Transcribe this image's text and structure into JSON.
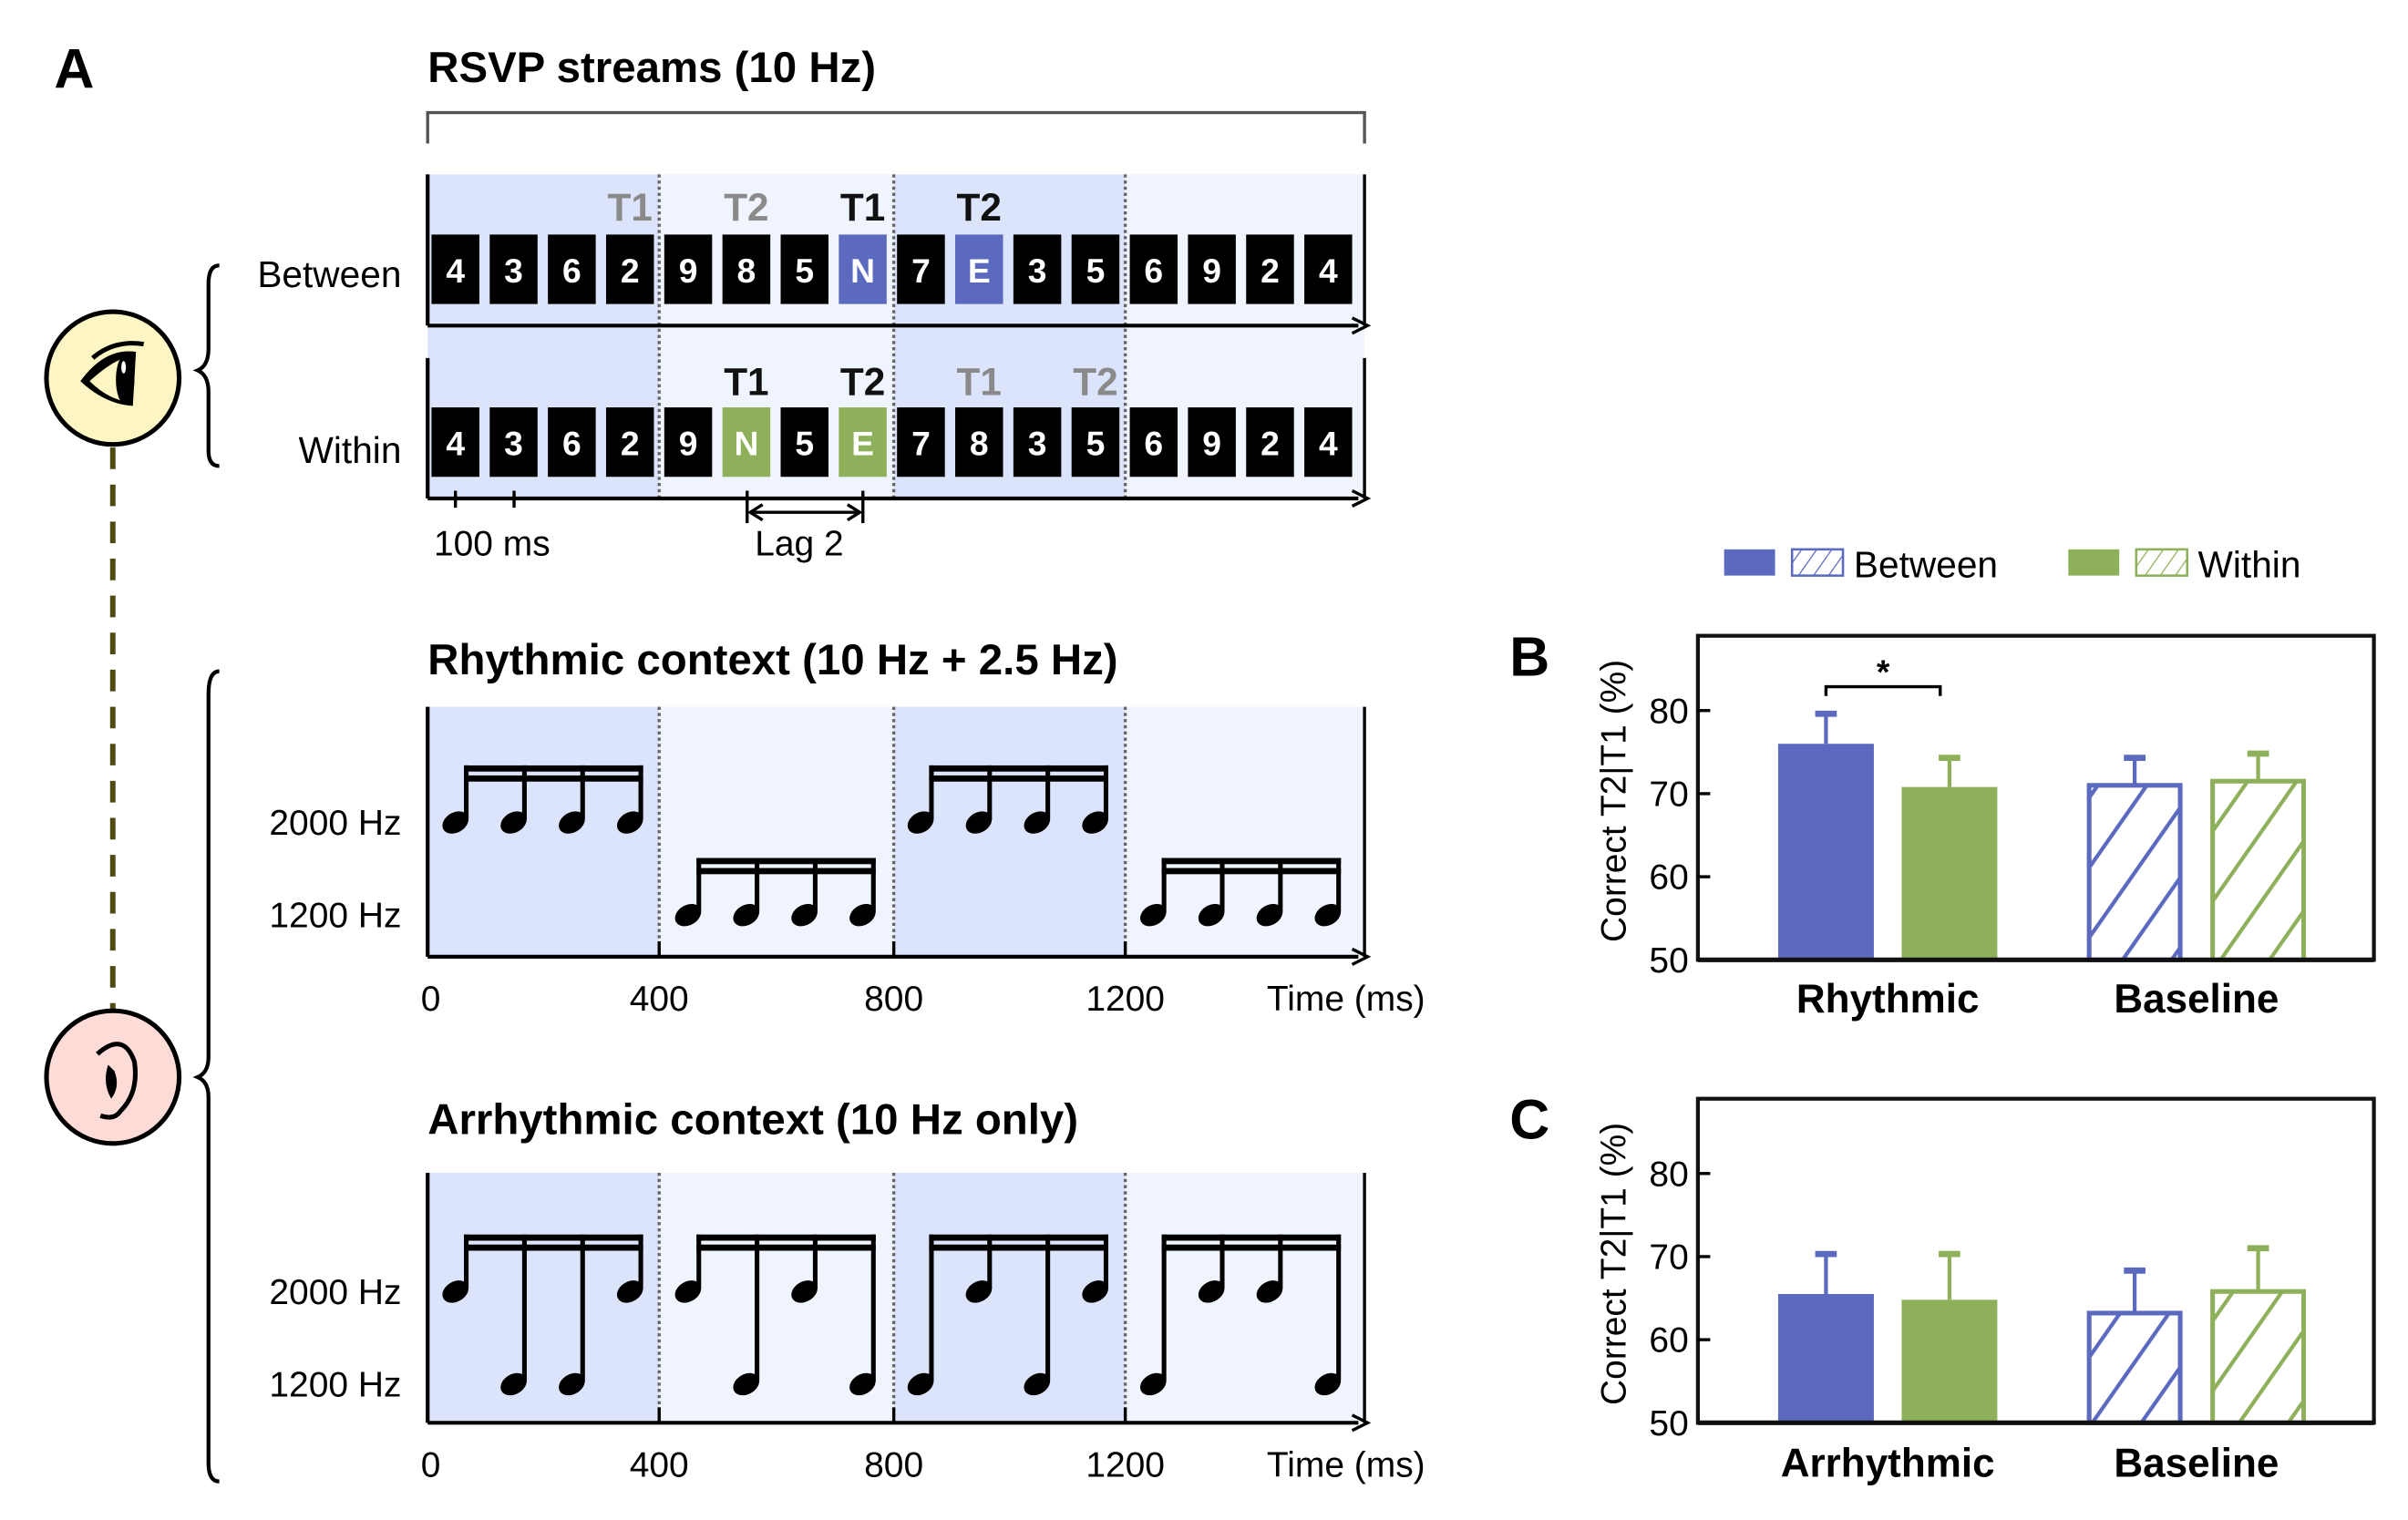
{
  "colors": {
    "between": "#5b69bf",
    "within": "#8fb05a",
    "segment_dark": "#dbe4fb",
    "segment_light": "#f0f4fe",
    "eye_bg": "#fdf6c4",
    "ear_bg": "#fddbd6",
    "link": "#4f4a12"
  },
  "panel_a": {
    "label": "A",
    "rsvp": {
      "title": "RSVP streams (10 Hz)",
      "rows": [
        {
          "label": "Between",
          "items": [
            "4",
            "3",
            "6",
            "2",
            "9",
            "8",
            "5",
            "N",
            "7",
            "E",
            "3",
            "5",
            "6",
            "9",
            "2",
            "4"
          ],
          "highlight": [
            7,
            9
          ],
          "highlight_color": "between",
          "targets": [
            {
              "text": "T1",
              "index": 3,
              "style": "gray"
            },
            {
              "text": "T2",
              "index": 5,
              "style": "gray"
            },
            {
              "text": "T1",
              "index": 7,
              "style": "black"
            },
            {
              "text": "T2",
              "index": 9,
              "style": "black"
            }
          ]
        },
        {
          "label": "Within",
          "items": [
            "4",
            "3",
            "6",
            "2",
            "9",
            "N",
            "5",
            "E",
            "7",
            "8",
            "3",
            "5",
            "6",
            "9",
            "2",
            "4"
          ],
          "highlight": [
            5,
            7
          ],
          "highlight_color": "within",
          "targets": [
            {
              "text": "T1",
              "index": 5,
              "style": "black"
            },
            {
              "text": "T2",
              "index": 7,
              "style": "black"
            },
            {
              "text": "T1",
              "index": 9,
              "style": "gray"
            },
            {
              "text": "T2",
              "index": 11,
              "style": "gray"
            }
          ]
        }
      ],
      "scale_label": "100 ms",
      "lag_label": "Lag 2"
    },
    "contexts": [
      {
        "title": "Rhythmic context (10 Hz + 2.5 Hz)",
        "high_label": "2000 Hz",
        "low_label": "1200 Hz",
        "groups": [
          [
            "H",
            "H",
            "H",
            "H"
          ],
          [
            "L",
            "L",
            "L",
            "L"
          ],
          [
            "H",
            "H",
            "H",
            "H"
          ],
          [
            "L",
            "L",
            "L",
            "L"
          ]
        ],
        "ticks": [
          "0",
          "400",
          "800",
          "1200"
        ],
        "axis_label": "Time (ms)"
      },
      {
        "title": "Arrhythmic context (10 Hz only)",
        "high_label": "2000 Hz",
        "low_label": "1200 Hz",
        "groups": [
          [
            "H",
            "L",
            "L",
            "H"
          ],
          [
            "H",
            "L",
            "H",
            "L"
          ],
          [
            "L",
            "H",
            "L",
            "H"
          ],
          [
            "L",
            "H",
            "H",
            "L"
          ]
        ],
        "ticks": [
          "0",
          "400",
          "800",
          "1200"
        ],
        "axis_label": "Time (ms)"
      }
    ],
    "icons": [
      "eye-icon",
      "ear-icon"
    ]
  },
  "legend": {
    "entries": [
      {
        "name": "Between",
        "color": "between"
      },
      {
        "name": "Within",
        "color": "within"
      }
    ],
    "placement": "top"
  },
  "chart_data": [
    {
      "panel": "B",
      "type": "bar",
      "ylabel": "Correct T2|T1 (%)",
      "ylim": [
        50,
        89
      ],
      "yticks": [
        "50",
        "60",
        "70",
        "80"
      ],
      "categories": [
        "Rhythmic",
        "Baseline"
      ],
      "hatched": [
        false,
        true
      ],
      "series": [
        {
          "name": "Between",
          "values": [
            76.0,
            71.0
          ],
          "error_upper": [
            79.8,
            74.5
          ]
        },
        {
          "name": "Within",
          "values": [
            70.8,
            71.5
          ],
          "error_upper": [
            74.5,
            75.0
          ]
        }
      ],
      "significance": {
        "label": "*",
        "category": 0
      }
    },
    {
      "panel": "C",
      "type": "bar",
      "ylabel": "Correct T2|T1 (%)",
      "ylim": [
        50,
        89
      ],
      "yticks": [
        "50",
        "60",
        "70",
        "80"
      ],
      "categories": [
        "Arrhythmic",
        "Baseline"
      ],
      "hatched": [
        false,
        true
      ],
      "series": [
        {
          "name": "Between",
          "values": [
            65.5,
            63.2
          ],
          "error_upper": [
            70.5,
            68.5
          ]
        },
        {
          "name": "Within",
          "values": [
            64.8,
            65.8
          ],
          "error_upper": [
            70.5,
            71.2
          ]
        }
      ]
    }
  ]
}
